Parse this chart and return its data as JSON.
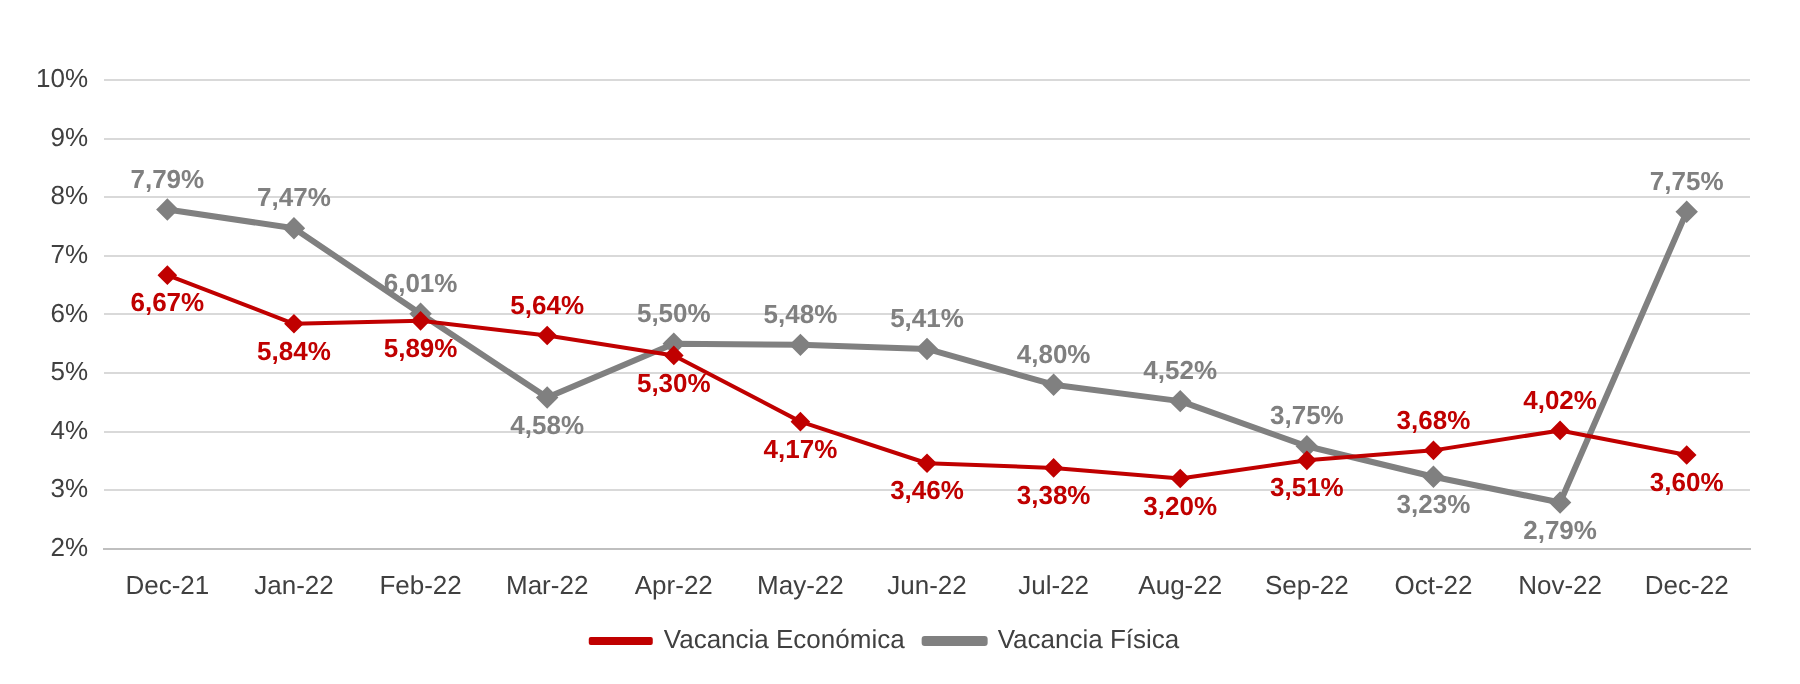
{
  "chart_data": {
    "type": "line",
    "categories": [
      "Dec-21",
      "Jan-22",
      "Feb-22",
      "Mar-22",
      "Apr-22",
      "May-22",
      "Jun-22",
      "Jul-22",
      "Aug-22",
      "Sep-22",
      "Oct-22",
      "Nov-22",
      "Dec-22"
    ],
    "series": [
      {
        "name": "Vacancia Económica",
        "color": "#c00000",
        "values": [
          6.67,
          5.84,
          5.89,
          5.64,
          5.3,
          4.17,
          3.46,
          3.38,
          3.2,
          3.51,
          3.68,
          4.02,
          3.6
        ],
        "value_labels": [
          "6,67%",
          "5,84%",
          "5,89%",
          "5,64%",
          "5,30%",
          "4,17%",
          "3,46%",
          "3,38%",
          "3,20%",
          "3,51%",
          "3,68%",
          "4,02%",
          "3,60%"
        ]
      },
      {
        "name": "Vacancia Física",
        "color": "#808080",
        "values": [
          7.79,
          7.47,
          6.01,
          4.58,
          5.5,
          5.48,
          5.41,
          4.8,
          4.52,
          3.75,
          3.23,
          2.79,
          7.75
        ],
        "value_labels": [
          "7,79%",
          "7,47%",
          "6,01%",
          "4,58%",
          "5,50%",
          "5,48%",
          "5,41%",
          "4,80%",
          "4,52%",
          "3,75%",
          "3,23%",
          "2,79%",
          "7,75%"
        ]
      }
    ],
    "ylim": [
      2,
      10
    ],
    "yticks": [
      {
        "value": 2,
        "label": "2%"
      },
      {
        "value": 3,
        "label": "3%"
      },
      {
        "value": 4,
        "label": "4%"
      },
      {
        "value": 5,
        "label": "5%"
      },
      {
        "value": 6,
        "label": "6%"
      },
      {
        "value": 7,
        "label": "7%"
      },
      {
        "value": 8,
        "label": "8%"
      },
      {
        "value": 9,
        "label": "9%"
      },
      {
        "value": 10,
        "label": "10%"
      }
    ],
    "grid": "y",
    "legend": "bottom",
    "marker": "diamond",
    "line_style": "solid"
  }
}
